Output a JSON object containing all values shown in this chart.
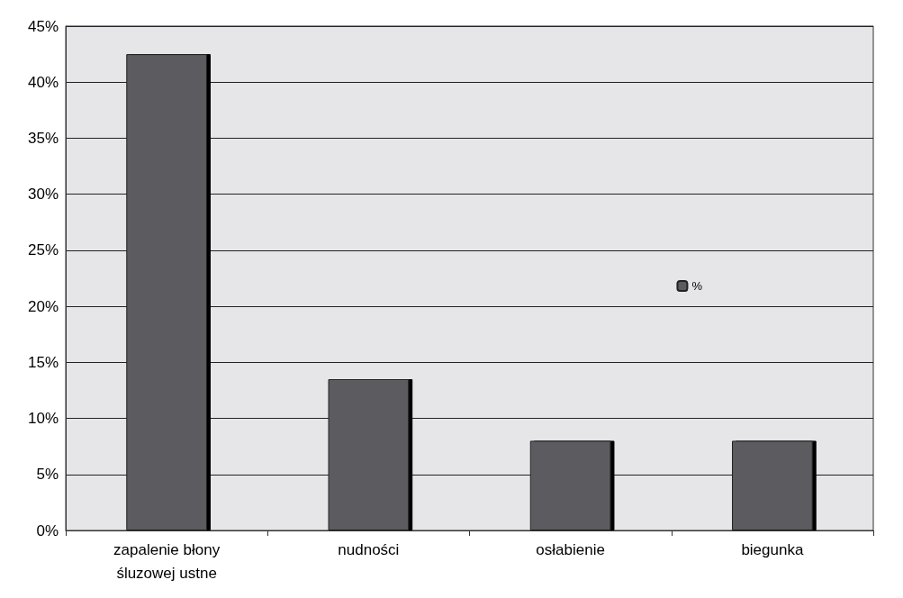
{
  "chart_data": {
    "type": "bar",
    "categories": [
      "zapalenie błony\nśluzowej ustne",
      "nudności",
      "osłabienie",
      "biegunka"
    ],
    "series": [
      {
        "name": "%",
        "color": "#5b5c60",
        "values": [
          42.5,
          13.5,
          8,
          8
        ]
      }
    ],
    "ylim": [
      0,
      45
    ],
    "yticks": [
      {
        "value": 0,
        "label": "0%"
      },
      {
        "value": 5,
        "label": "5%"
      },
      {
        "value": 10,
        "label": "10%"
      },
      {
        "value": 15,
        "label": "15%"
      },
      {
        "value": 20,
        "label": "20%"
      },
      {
        "value": 25,
        "label": "25%"
      },
      {
        "value": 30,
        "label": "30%"
      },
      {
        "value": 35,
        "label": "35%"
      },
      {
        "value": 40,
        "label": "40%"
      },
      {
        "value": 45,
        "label": "45%"
      }
    ],
    "grid": "y",
    "legend": "right"
  }
}
